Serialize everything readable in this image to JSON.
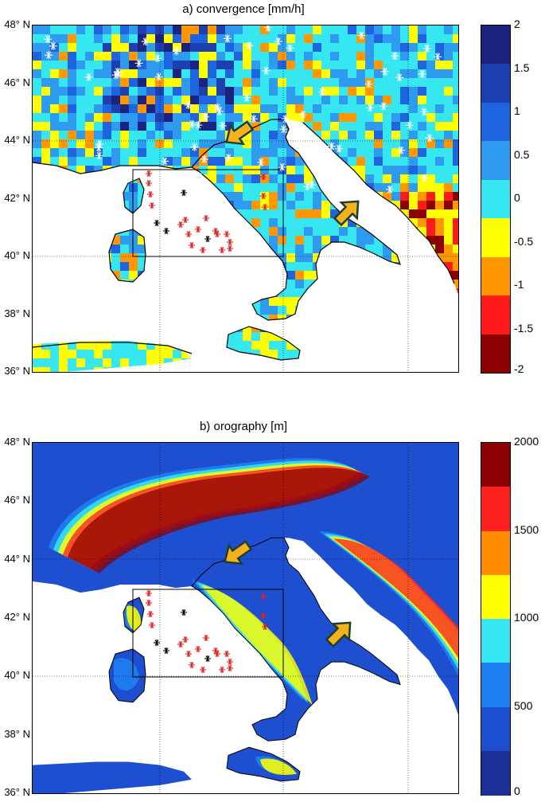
{
  "panels": [
    {
      "id": "a",
      "title": "a) convergence [mm/h]",
      "lat_labels": [
        "48° N",
        "46° N",
        "44° N",
        "42° N",
        "40° N",
        "38° N",
        "36° N"
      ],
      "colorbar": {
        "ticks": [
          "2",
          "1.5",
          "1",
          "0.5",
          "0",
          "-0.5",
          "-1",
          "-1.5",
          "-2"
        ],
        "colors": [
          "#1a237e",
          "#1e3fb0",
          "#1e63e0",
          "#2e9bf0",
          "#36e6f0",
          "#ffff00",
          "#ff9800",
          "#ff1a1a",
          "#8b0000"
        ]
      }
    },
    {
      "id": "b",
      "title": "b) orography [m]",
      "lat_labels": [
        "48° N",
        "46° N",
        "44° N",
        "42° N",
        "40° N",
        "38° N",
        "36° N"
      ],
      "colorbar": {
        "ticks": [
          "2000",
          "1500",
          "1000",
          "500",
          "0"
        ],
        "colors": [
          "#8b0000",
          "#ff2020",
          "#ff8c00",
          "#ffff00",
          "#36e6f0",
          "#1e7ff0",
          "#1e4fd0",
          "#1a2f9a"
        ]
      }
    }
  ],
  "colors": {
    "arrow_fill": "#f5b21e",
    "arrow_outline": "#1e3f2e",
    "marker_red": "#e02020",
    "marker_black": "#000000",
    "marker_white": "#ffffff"
  }
}
